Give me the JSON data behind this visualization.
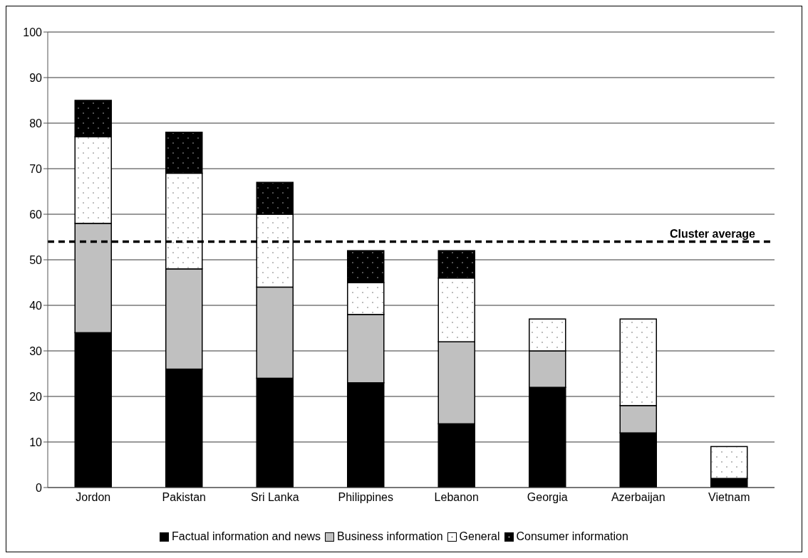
{
  "chart_data": {
    "type": "bar",
    "stacked": true,
    "categories": [
      "Jordon",
      "Pakistan",
      "Sri Lanka",
      "Philippines",
      "Lebanon",
      "Georgia",
      "Azerbaijan",
      "Vietnam"
    ],
    "series": [
      {
        "name": "Factual information and news",
        "color": "#000000",
        "values": [
          34,
          26,
          24,
          23,
          14,
          22,
          12,
          2
        ]
      },
      {
        "name": "Business information",
        "color": "#c0c0c0",
        "values": [
          24,
          22,
          20,
          15,
          18,
          8,
          6,
          0
        ]
      },
      {
        "name": "General",
        "color": "#ffffff",
        "values": [
          19,
          21,
          16,
          7,
          14,
          7,
          19,
          7
        ]
      },
      {
        "name": "Consumer information",
        "color": "#000000",
        "values": [
          8,
          9,
          7,
          7,
          6,
          0,
          0,
          0
        ]
      }
    ],
    "ylim": [
      0,
      100
    ],
    "yticks": [
      0,
      10,
      20,
      30,
      40,
      50,
      60,
      70,
      80,
      90,
      100
    ],
    "grid": "y",
    "legend": "bottom",
    "ref_lines": [
      {
        "axis": "y",
        "value": 54,
        "label": "Cluster average",
        "color": "#000000",
        "line_style": "dashed"
      }
    ]
  }
}
